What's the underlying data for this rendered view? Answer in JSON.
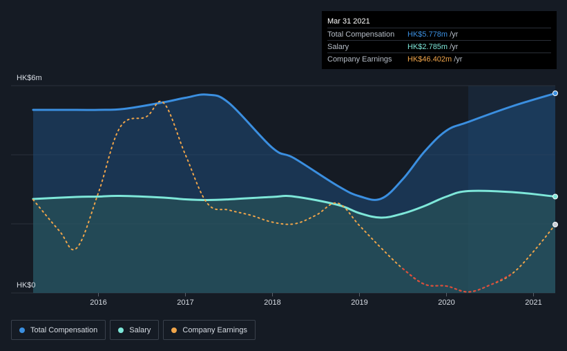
{
  "tooltip": {
    "date": "Mar 31 2021",
    "rows": [
      {
        "label": "Total Compensation",
        "value": "HK$5.778m",
        "unit": "/yr",
        "color": "#3b8fe0"
      },
      {
        "label": "Salary",
        "value": "HK$2.785m",
        "unit": "/yr",
        "color": "#7ee7d9"
      },
      {
        "label": "Company Earnings",
        "value": "HK$46.402m",
        "unit": "/yr",
        "color": "#f0a54a"
      }
    ]
  },
  "legend": [
    {
      "label": "Total Compensation",
      "color": "#3b8fe0"
    },
    {
      "label": "Salary",
      "color": "#7ee7d9"
    },
    {
      "label": "Company Earnings",
      "color": "#f0a54a"
    }
  ],
  "chart_data": {
    "type": "line",
    "y_tick_labels": [
      "HK$0",
      "HK$6m"
    ],
    "ylim": [
      0,
      6
    ],
    "xlim": [
      2015.25,
      2021.25
    ],
    "x_tick_labels": [
      "2016",
      "2017",
      "2018",
      "2019",
      "2020",
      "2021"
    ],
    "x_ticks": [
      2016,
      2017,
      2018,
      2019,
      2020,
      2021
    ],
    "highlight_range": [
      2020.25,
      2021.25
    ],
    "negative_color": "#e0453a",
    "series": [
      {
        "name": "Total Compensation",
        "color": "#3b8fe0",
        "x": [
          2015.25,
          2015.75,
          2016.0,
          2016.3,
          2016.75,
          2017.0,
          2017.25,
          2017.5,
          2018.0,
          2018.25,
          2018.75,
          2019.0,
          2019.25,
          2019.5,
          2019.75,
          2020.0,
          2020.25,
          2020.75,
          2021.25
        ],
        "values": [
          5.3,
          5.3,
          5.3,
          5.33,
          5.52,
          5.65,
          5.74,
          5.5,
          4.2,
          3.9,
          3.1,
          2.8,
          2.73,
          3.3,
          4.1,
          4.7,
          4.95,
          5.4,
          5.78
        ]
      },
      {
        "name": "Salary",
        "color": "#7ee7d9",
        "x": [
          2015.25,
          2015.75,
          2016.0,
          2016.25,
          2016.75,
          2017.0,
          2017.25,
          2017.5,
          2018.0,
          2018.25,
          2018.75,
          2019.0,
          2019.25,
          2019.5,
          2019.75,
          2020.0,
          2020.25,
          2020.75,
          2021.25
        ],
        "values": [
          2.72,
          2.78,
          2.79,
          2.81,
          2.76,
          2.71,
          2.69,
          2.71,
          2.78,
          2.79,
          2.55,
          2.31,
          2.18,
          2.3,
          2.52,
          2.79,
          2.95,
          2.92,
          2.79
        ]
      },
      {
        "name": "Company Earnings",
        "color": "#f0a54a",
        "x": [
          2015.25,
          2015.55,
          2015.75,
          2016.0,
          2016.25,
          2016.55,
          2016.75,
          2017.0,
          2017.25,
          2017.5,
          2017.75,
          2018.0,
          2018.25,
          2018.5,
          2018.75,
          2019.0,
          2019.25,
          2019.5,
          2019.75,
          2020.0,
          2020.25,
          2020.5,
          2020.75,
          2021.0,
          2021.25
        ],
        "values": [
          2.7,
          1.8,
          1.3,
          2.9,
          4.8,
          5.1,
          5.5,
          4.0,
          2.6,
          2.4,
          2.25,
          2.05,
          2.0,
          2.25,
          2.6,
          1.95,
          1.3,
          0.7,
          0.25,
          0.2,
          0.03,
          0.23,
          0.55,
          1.2,
          1.98
        ]
      }
    ]
  }
}
